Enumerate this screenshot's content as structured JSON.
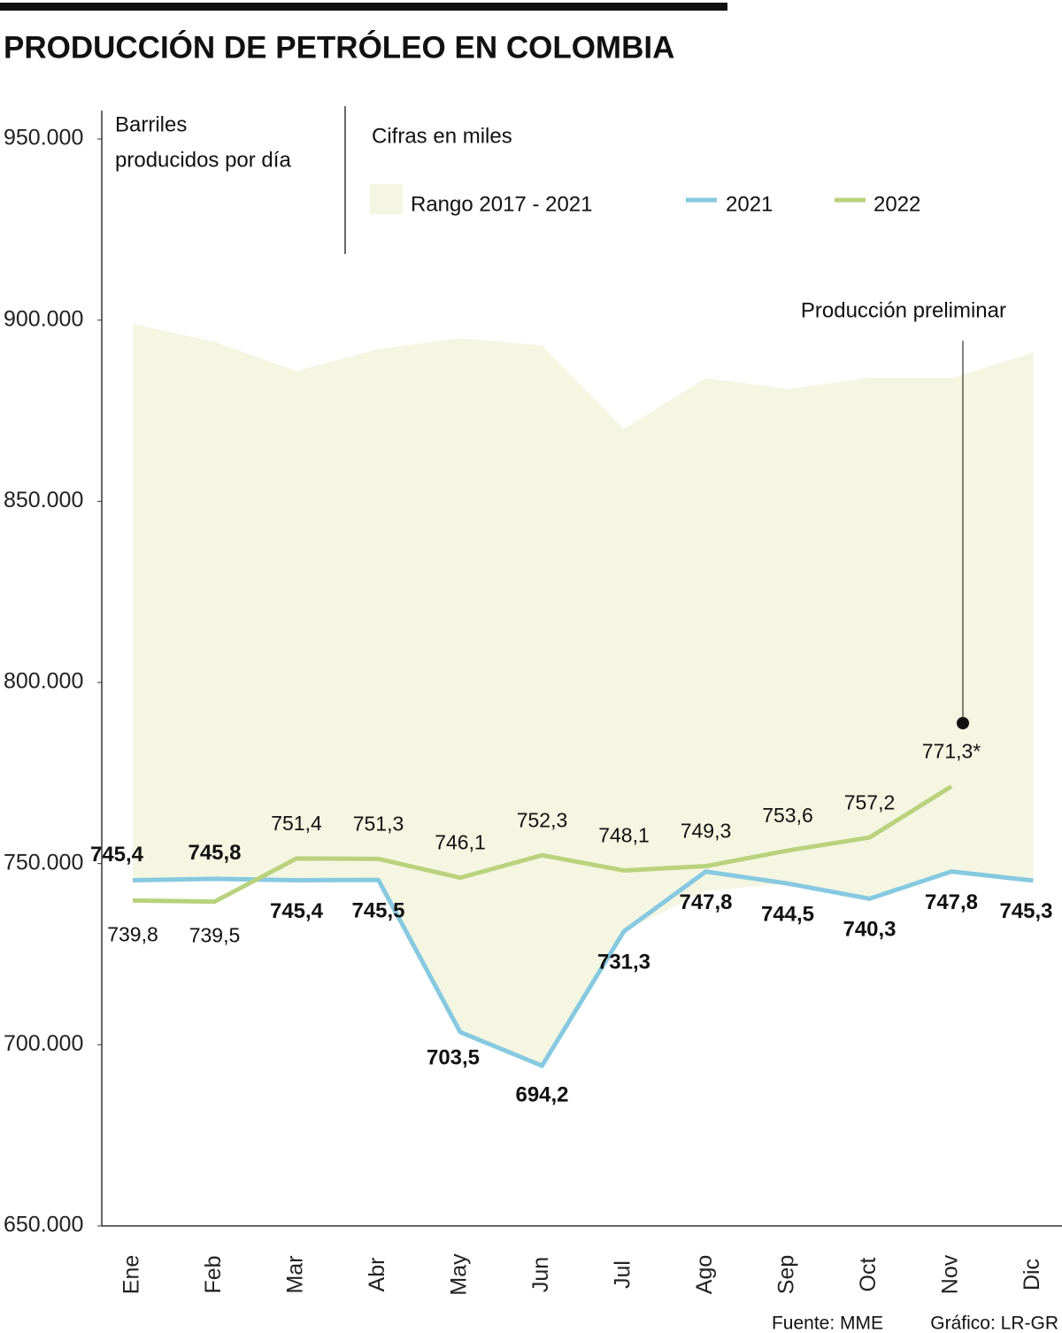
{
  "chart_data": {
    "type": "line",
    "title": "PRODUCCIÓN DE PETRÓLEO EN COLOMBIA",
    "y_label": [
      "Barriles",
      "producidos por día"
    ],
    "note": "Cifras en miles",
    "annotation": "Producción preliminar",
    "source": "Fuente: MME",
    "credit": "Gráfico: LR-GR",
    "categories": [
      "Ene",
      "Feb",
      "Mar",
      "Abr",
      "May",
      "Jun",
      "Jul",
      "Ago",
      "Sep",
      "Oct",
      "Nov",
      "Dic"
    ],
    "band": {
      "name": "Rango 2017 - 2021",
      "color": "#f4f6e2",
      "upper": [
        899000,
        894000,
        886000,
        892000,
        895000,
        893000,
        870000,
        884000,
        881000,
        884000,
        884000,
        891000
      ],
      "lower": [
        745400,
        745800,
        745400,
        745500,
        703500,
        694200,
        731300,
        742500,
        744500,
        740300,
        747800,
        745300
      ]
    },
    "series": [
      {
        "name": "2021",
        "color": "#86c9e0",
        "values": [
          745400,
          745800,
          745400,
          745500,
          703500,
          694200,
          731300,
          747800,
          744500,
          740300,
          747800,
          745300
        ],
        "value_labels": [
          "745,4",
          "745,8",
          "745,4",
          "745,5",
          "703,5",
          "694,2",
          "731,3",
          "747,8",
          "744,5",
          "740,3",
          "747,8",
          "745,3"
        ]
      },
      {
        "name": "2022",
        "color": "#b9d27d",
        "values": [
          739800,
          739500,
          751400,
          751300,
          746100,
          752300,
          748100,
          749300,
          753600,
          757200,
          771300,
          null
        ],
        "value_labels": [
          "739,8",
          "739,5",
          "751,4",
          "751,3",
          "746,1",
          "752,3",
          "748,1",
          "749,3",
          "753,6",
          "757,2",
          "771,3*",
          null
        ]
      }
    ],
    "ylim": [
      650000,
      950000
    ],
    "yticks": [
      {
        "value": 650000,
        "label": "650.000"
      },
      {
        "value": 700000,
        "label": "700.000"
      },
      {
        "value": 750000,
        "label": "750.000"
      },
      {
        "value": 800000,
        "label": "800.000"
      },
      {
        "value": 850000,
        "label": "850.000"
      },
      {
        "value": 900000,
        "label": "900.000"
      },
      {
        "value": 950000,
        "label": "950.000"
      }
    ]
  }
}
